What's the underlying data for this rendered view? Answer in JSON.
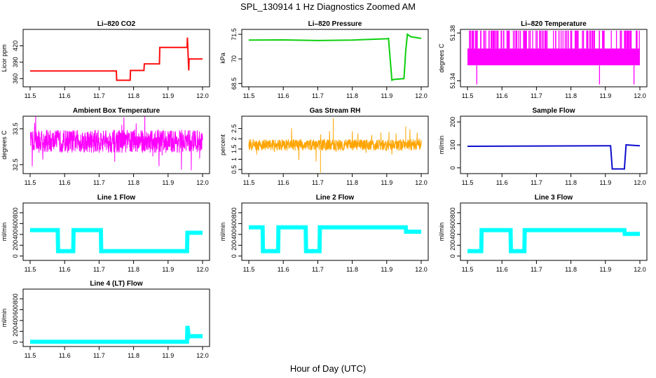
{
  "figure": {
    "title": "SPL_130914  1 Hz Diagnostics Zoomed AM",
    "xlabel": "Hour of Day (UTC)"
  },
  "chart_data": [
    {
      "type": "line",
      "title": "Li–820 CO2",
      "ylabel": "Licor ppm",
      "color": "#ff0000",
      "xlim": [
        11.5,
        12.0
      ],
      "ylim": [
        345,
        450
      ],
      "xticks": [
        "11.5",
        "11.6",
        "11.7",
        "11.8",
        "11.9",
        "12.0"
      ],
      "yticks": [
        360,
        390,
        420
      ],
      "series": [
        {
          "x": [
            11.5,
            11.75,
            11.751,
            11.79,
            11.791,
            11.83,
            11.831,
            11.875,
            11.876,
            11.955,
            11.956,
            11.96,
            11.961,
            12.0
          ],
          "y": [
            374,
            374,
            357,
            357,
            375,
            375,
            387,
            387,
            417,
            417,
            435,
            375,
            396,
            396
          ]
        }
      ]
    },
    {
      "type": "line",
      "title": "Li–820 Pressure",
      "ylabel": "kPa",
      "color": "#00cc00",
      "xlim": [
        11.5,
        12.0
      ],
      "ylim": [
        68.3,
        71.8
      ],
      "xticks": [
        "11.5",
        "11.6",
        "11.7",
        "11.8",
        "11.9",
        "12.0"
      ],
      "yticks": [
        68.5,
        70.0,
        71.5
      ],
      "series": [
        {
          "x": [
            11.5,
            11.6,
            11.7,
            11.8,
            11.9,
            11.905,
            11.915,
            11.92,
            11.95,
            11.955,
            11.96,
            11.97,
            12.0
          ],
          "y": [
            71.15,
            71.16,
            71.12,
            71.15,
            71.23,
            71.25,
            68.7,
            68.75,
            68.8,
            70.5,
            71.5,
            71.35,
            71.25
          ]
        }
      ]
    },
    {
      "type": "line",
      "title": "Li–820 Temperature",
      "ylabel": "degrees C",
      "color": "#ff00ff",
      "xlim": [
        11.5,
        12.0
      ],
      "ylim": [
        51.335,
        51.383
      ],
      "xticks": [
        "11.5",
        "11.6",
        "11.7",
        "11.8",
        "11.9",
        "12.0"
      ],
      "yticks": [
        51.34,
        51.38
      ],
      "yticklabels": [
        "51.34",
        "51.38"
      ],
      "series": [
        {
          "x": [
            11.5,
            12.0
          ],
          "y": [
            51.355,
            51.365
          ]
        }
      ]
    },
    {
      "type": "line",
      "title": "Ambient Box Temperature",
      "ylabel": "degrees C",
      "color": "#ff00ff",
      "xlim": [
        11.5,
        12.0
      ],
      "ylim": [
        32.25,
        33.85
      ],
      "xticks": [
        "11.5",
        "11.6",
        "11.7",
        "11.8",
        "11.9",
        "12.0"
      ],
      "yticks": [
        32.5,
        33.5
      ],
      "series": [
        {
          "x": [
            11.5,
            12.0
          ],
          "y": [
            32.8,
            33.6
          ]
        }
      ]
    },
    {
      "type": "line",
      "title": "Gas Stream RH",
      "ylabel": "percent",
      "color": "#ffa500",
      "xlim": [
        11.5,
        12.0
      ],
      "ylim": [
        0.3,
        3.1
      ],
      "xticks": [
        "11.5",
        "11.6",
        "11.7",
        "11.8",
        "11.9",
        "12.0"
      ],
      "yticks": [
        0.5,
        1.0,
        1.5,
        2.0,
        2.5
      ],
      "series": [
        {
          "x": [
            11.5,
            12.0
          ],
          "y": [
            1.3,
            2.1
          ]
        }
      ]
    },
    {
      "type": "line",
      "title": "Sample Flow",
      "ylabel": "ml/min",
      "color": "#0000cc",
      "xlim": [
        11.5,
        12.0
      ],
      "ylim": [
        -25,
        225
      ],
      "xticks": [
        "11.5",
        "11.6",
        "11.7",
        "11.8",
        "11.9",
        "12.0"
      ],
      "yticks": [
        0,
        100,
        200
      ],
      "series": [
        {
          "x": [
            11.5,
            11.7,
            11.9,
            11.915,
            11.92,
            11.955,
            11.96,
            12.0
          ],
          "y": [
            94,
            95,
            96,
            96,
            -5,
            -5,
            100,
            96
          ]
        }
      ]
    },
    {
      "type": "line",
      "title": "Line 1 Flow",
      "ylabel": "ml/min",
      "color": "#00ffff",
      "xlim": [
        11.5,
        12.0
      ],
      "ylim": [
        -80,
        980
      ],
      "xticks": [
        "11.5",
        "11.6",
        "11.7",
        "11.8",
        "11.9",
        "12.0"
      ],
      "yticks": [
        0,
        200,
        400,
        600,
        800
      ],
      "series": [
        {
          "x": [
            11.5,
            11.58,
            11.581,
            11.625,
            11.626,
            11.705,
            11.706,
            11.955,
            11.956,
            12.0
          ],
          "y": [
            480,
            480,
            90,
            90,
            480,
            480,
            90,
            90,
            430,
            430
          ]
        }
      ]
    },
    {
      "type": "line",
      "title": "Line 2 Flow",
      "ylabel": "ml/min",
      "color": "#00ffff",
      "xlim": [
        11.5,
        12.0
      ],
      "ylim": [
        -80,
        980
      ],
      "xticks": [
        "11.5",
        "11.6",
        "11.7",
        "11.8",
        "11.9",
        "12.0"
      ],
      "yticks": [
        0,
        200,
        400,
        600,
        800
      ],
      "series": [
        {
          "x": [
            11.5,
            11.54,
            11.541,
            11.585,
            11.586,
            11.665,
            11.666,
            11.705,
            11.706,
            11.955,
            11.956,
            12.0
          ],
          "y": [
            530,
            530,
            90,
            90,
            530,
            530,
            90,
            90,
            530,
            530,
            450,
            450
          ]
        }
      ]
    },
    {
      "type": "line",
      "title": "Line 3 Flow",
      "ylabel": "ml/min",
      "color": "#00ffff",
      "xlim": [
        11.5,
        12.0
      ],
      "ylim": [
        -80,
        980
      ],
      "xticks": [
        "11.5",
        "11.6",
        "11.7",
        "11.8",
        "11.9",
        "12.0"
      ],
      "yticks": [
        0,
        200,
        400,
        600,
        800
      ],
      "series": [
        {
          "x": [
            11.5,
            11.54,
            11.541,
            11.625,
            11.626,
            11.665,
            11.666,
            11.955,
            11.956,
            12.0
          ],
          "y": [
            90,
            90,
            480,
            480,
            90,
            90,
            480,
            480,
            410,
            410
          ]
        }
      ]
    },
    {
      "type": "line",
      "title": "Line 4 (LT) Flow",
      "ylabel": "ml/min",
      "color": "#00ffff",
      "xlim": [
        11.5,
        12.0
      ],
      "ylim": [
        -80,
        980
      ],
      "xticks": [
        "11.5",
        "11.6",
        "11.7",
        "11.8",
        "11.9",
        "12.0"
      ],
      "yticks": [
        0,
        200,
        400,
        600,
        800
      ],
      "series": [
        {
          "x": [
            11.5,
            11.955,
            11.956,
            11.96,
            11.961,
            12.0
          ],
          "y": [
            8,
            8,
            300,
            100,
            110,
            110
          ]
        }
      ]
    }
  ]
}
